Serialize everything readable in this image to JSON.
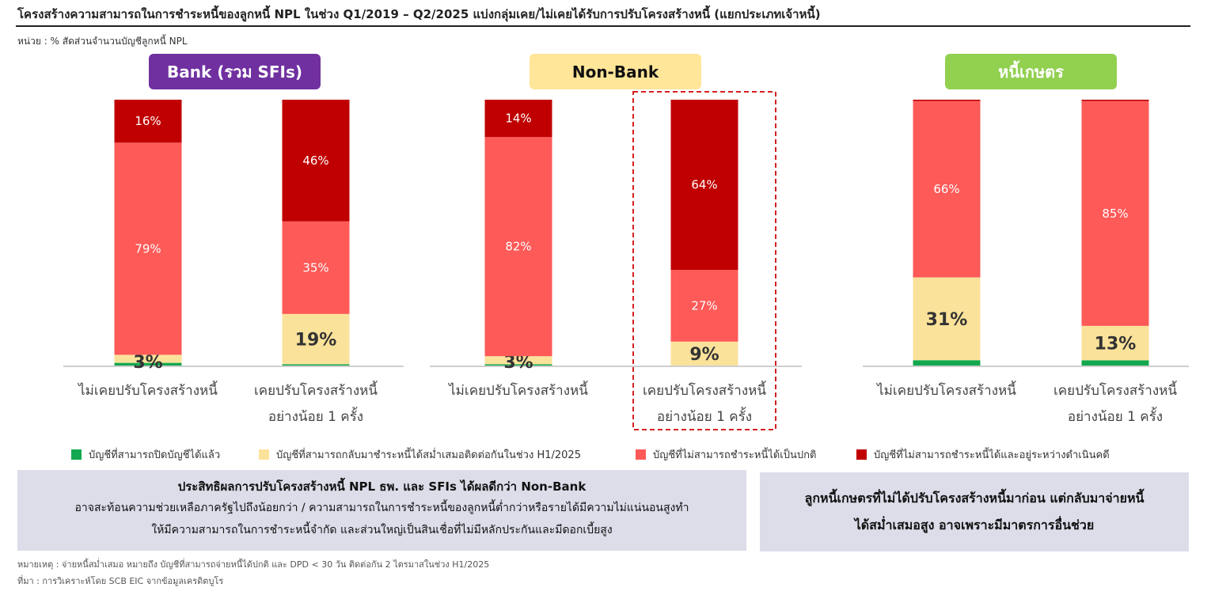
{
  "title": "โครงสร้างความสามารถในการชำระหนี้ของลูกหนี้ NPL ในช่วง Q1/2019 – Q2/2025 แบ่งกลุ่มเคย/ไม่เคยได้รับการปรับโครงสร้างหนี้ (แยกประเภทเจ้าหนี้)",
  "unit": "หน่วย : % สัดส่วนจำนวนบัญชีลูกหนี้ NPL",
  "colors": {
    "closed": "#13a84f",
    "regular": "#fbe29a",
    "cannot_pay": "#fd5a58",
    "litigation": "#c00000",
    "bank_label_bg": "#7030a0",
    "nonbank_label_bg": "#ffe699",
    "agri_label_bg": "#92d050"
  },
  "chart_data": {
    "type": "bar",
    "stacked": true,
    "ylim": [
      0,
      100
    ],
    "grid": false,
    "legend_position": "bottom",
    "categories": [
      "ไม่เคยปรับโครงสร้างหนี้",
      "เคยปรับโครงสร้างหนี้ อย่างน้อย 1 ครั้ง"
    ],
    "panels": [
      {
        "name": "Bank (รวม SFIs)",
        "series": [
          {
            "name": "บัญชีที่สามารถปิดบัญชีได้แล้ว",
            "values": [
              1,
              0.5
            ]
          },
          {
            "name": "บัญชีที่สามารถกลับมาชำระหนี้ได้สม่ำเสมอติดต่อกันในช่วง H1/2025",
            "values": [
              3,
              19
            ]
          },
          {
            "name": "บัญชีที่ไม่สามารถชำระหนี้ได้เป็นปกติ",
            "values": [
              79,
              35
            ]
          },
          {
            "name": "บัญชีที่ไม่สามารถชำระหนี้ได้และอยู่ระหว่างดำเนินคดี",
            "values": [
              16,
              46
            ]
          }
        ],
        "labels": [
          [
            "",
            "3%",
            "79%",
            "16%"
          ],
          [
            "",
            "19%",
            "35%",
            "46%"
          ]
        ]
      },
      {
        "name": "Non-Bank",
        "series": [
          {
            "name": "บัญชีที่สามารถปิดบัญชีได้แล้ว",
            "values": [
              0.5,
              0
            ]
          },
          {
            "name": "บัญชีที่สามารถกลับมาชำระหนี้ได้สม่ำเสมอติดต่อกันในช่วง H1/2025",
            "values": [
              3,
              9
            ]
          },
          {
            "name": "บัญชีที่ไม่สามารถชำระหนี้ได้เป็นปกติ",
            "values": [
              82,
              27
            ]
          },
          {
            "name": "บัญชีที่ไม่สามารถชำระหนี้ได้และอยู่ระหว่างดำเนินคดี",
            "values": [
              14,
              64
            ]
          }
        ],
        "labels": [
          [
            "",
            "3%",
            "82%",
            "14%"
          ],
          [
            "",
            "9%",
            "27%",
            "64%"
          ]
        ],
        "highlight_category": 1
      },
      {
        "name": "หนี้เกษตร",
        "series": [
          {
            "name": "บัญชีที่สามารถปิดบัญชีได้แล้ว",
            "values": [
              2,
              2
            ]
          },
          {
            "name": "บัญชีที่สามารถกลับมาชำระหนี้ได้สม่ำเสมอติดต่อกันในช่วง H1/2025",
            "values": [
              31,
              13
            ]
          },
          {
            "name": "บัญชีที่ไม่สามารถชำระหนี้ได้เป็นปกติ",
            "values": [
              66,
              85
            ]
          },
          {
            "name": "บัญชีที่ไม่สามารถชำระหนี้ได้และอยู่ระหว่างดำเนินคดี",
            "values": [
              0.5,
              0.5
            ]
          }
        ],
        "labels": [
          [
            "",
            "31%",
            "66%",
            ""
          ],
          [
            "",
            "13%",
            "85%",
            ""
          ]
        ]
      }
    ]
  },
  "box_left": {
    "heading": "ประสิทธิผลการปรับโครงสร้างหนี้ NPL ธพ. และ SFIs ได้ผลดีกว่า Non-Bank",
    "line1": "อาจสะท้อนความช่วยเหลือภาครัฐไปถึงน้อยกว่า / ความสามารถในการชำระหนี้ของลูกหนี้ต่ำกว่าหรือรายได้มีความไม่แน่นอนสูงทำ",
    "line2": "ให้มีความสามารถในการชำระหนี้จำกัด และส่วนใหญ่เป็นสินเชื่อที่ไม่มีหลักประกันและมีดอกเบี้ยสูง"
  },
  "box_right": {
    "line1": "ลูกหนี้เกษตรที่ไม่ได้ปรับโครงสร้างหนี้มาก่อน แต่กลับมาจ่ายหนี้",
    "line2": "ได้สม่ำเสมอสูง อาจเพราะมีมาตรการอื่นช่วย"
  },
  "notes": {
    "remark": "หมายเหตุ : จ่ายหนี้สม่ำเสมอ หมายถึง บัญชีที่สามารถจ่ายหนี้ได้ปกติ และ DPD < 30 วัน ติดต่อกัน 2 ไตรมาสในช่วง H1/2025",
    "source": "ที่มา : การวิเคราะห์โดย SCB EIC จากข้อมูลเครดิตบูโร"
  }
}
